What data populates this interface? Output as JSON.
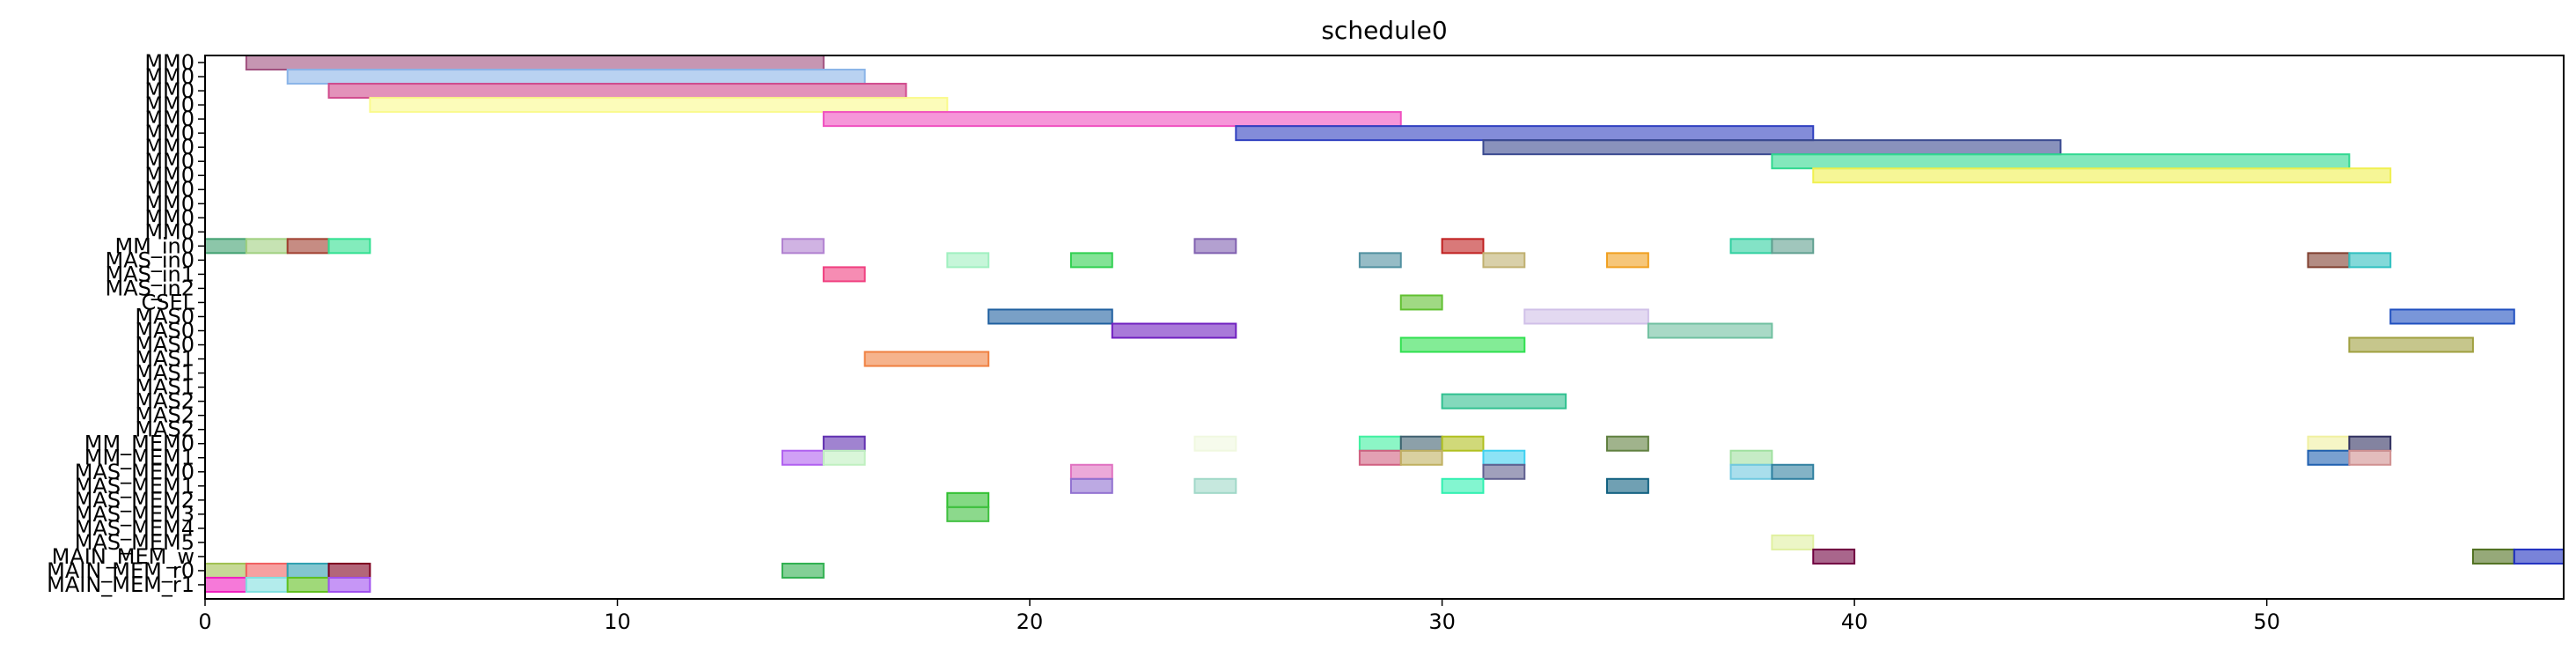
{
  "chart_data": {
    "type": "gantt",
    "title": "schedule0",
    "xlabel": "",
    "ylabel": "",
    "xlim": [
      0,
      57.2
    ],
    "x_ticks": [
      0,
      10,
      20,
      30,
      40,
      50
    ],
    "grid": false,
    "rows": [
      "MM0",
      "MM0",
      "MM0",
      "MM0",
      "MM0",
      "MM0",
      "MM0",
      "MM0",
      "MM0",
      "MM0",
      "MM0",
      "MM0",
      "MM0",
      "MM_in0",
      "MAS_in0",
      "MAS_in1",
      "MAS_in2",
      "CSEL",
      "MAS0",
      "MAS0",
      "MAS0",
      "MAS1",
      "MAS1",
      "MAS1",
      "MAS2",
      "MAS2",
      "MAS2",
      "MM_MEM0",
      "MM_MEM1",
      "MAS_MEM0",
      "MAS_MEM1",
      "MAS_MEM2",
      "MAS_MEM3",
      "MAS_MEM4",
      "MAS_MEM5",
      "MAIN_MEM_w",
      "MAIN_MEM_r0",
      "MAIN_MEM_r1"
    ],
    "tasks": [
      {
        "row": 0,
        "start": 1,
        "end": 15,
        "color": "#a0507e"
      },
      {
        "row": 1,
        "start": 2,
        "end": 16,
        "color": "#8ab4e8"
      },
      {
        "row": 2,
        "start": 3,
        "end": 17,
        "color": "#d04a8c"
      },
      {
        "row": 3,
        "start": 4,
        "end": 18,
        "color": "#fafa8c"
      },
      {
        "row": 4,
        "start": 15,
        "end": 29,
        "color": "#f050c0"
      },
      {
        "row": 5,
        "start": 25,
        "end": 39,
        "color": "#3040c0"
      },
      {
        "row": 6,
        "start": 31,
        "end": 45,
        "color": "#3a4a90"
      },
      {
        "row": 7,
        "start": 38,
        "end": 52,
        "color": "#30d890"
      },
      {
        "row": 8,
        "start": 39,
        "end": 53,
        "color": "#f0f050"
      },
      {
        "row": 13,
        "start": 0,
        "end": 1,
        "color": "#40a070"
      },
      {
        "row": 13,
        "start": 1,
        "end": 2,
        "color": "#a0d080"
      },
      {
        "row": 13,
        "start": 2,
        "end": 3,
        "color": "#a04030"
      },
      {
        "row": 13,
        "start": 3,
        "end": 4,
        "color": "#30e090"
      },
      {
        "row": 13,
        "start": 14,
        "end": 15,
        "color": "#b080d0"
      },
      {
        "row": 13,
        "start": 24,
        "end": 25,
        "color": "#8060b0"
      },
      {
        "row": 13,
        "start": 30,
        "end": 31,
        "color": "#c02020"
      },
      {
        "row": 13,
        "start": 37,
        "end": 38,
        "color": "#30d0a0"
      },
      {
        "row": 13,
        "start": 38,
        "end": 39,
        "color": "#60a090"
      },
      {
        "row": 14,
        "start": 18,
        "end": 19,
        "color": "#a0f0c0"
      },
      {
        "row": 14,
        "start": 21,
        "end": 22,
        "color": "#30d050"
      },
      {
        "row": 14,
        "start": 28,
        "end": 29,
        "color": "#5090a0"
      },
      {
        "row": 14,
        "start": 31,
        "end": 32,
        "color": "#c0b070"
      },
      {
        "row": 14,
        "start": 34,
        "end": 35,
        "color": "#f0a020"
      },
      {
        "row": 14,
        "start": 51,
        "end": 52,
        "color": "#804030"
      },
      {
        "row": 14,
        "start": 52,
        "end": 53,
        "color": "#30c0c0"
      },
      {
        "row": 15,
        "start": 15,
        "end": 16,
        "color": "#f04080"
      },
      {
        "row": 17,
        "start": 29,
        "end": 30,
        "color": "#60c030"
      },
      {
        "row": 18,
        "start": 19,
        "end": 22,
        "color": "#2060a0"
      },
      {
        "row": 18,
        "start": 32,
        "end": 35,
        "color": "#d0c0e8"
      },
      {
        "row": 18,
        "start": 53,
        "end": 56,
        "color": "#2050c0"
      },
      {
        "row": 19,
        "start": 22,
        "end": 25,
        "color": "#7020c0"
      },
      {
        "row": 19,
        "start": 35,
        "end": 38,
        "color": "#70c0a0"
      },
      {
        "row": 20,
        "start": 29,
        "end": 32,
        "color": "#30e050"
      },
      {
        "row": 20,
        "start": 52,
        "end": 55,
        "color": "#a0a040"
      },
      {
        "row": 21,
        "start": 16,
        "end": 19,
        "color": "#f08040"
      },
      {
        "row": 24,
        "start": 30,
        "end": 33,
        "color": "#30c090"
      },
      {
        "row": 27,
        "start": 15,
        "end": 16,
        "color": "#6030b0"
      },
      {
        "row": 27,
        "start": 24,
        "end": 25,
        "color": "#f0f8e0"
      },
      {
        "row": 27,
        "start": 28,
        "end": 29,
        "color": "#40f0a0"
      },
      {
        "row": 27,
        "start": 29,
        "end": 30,
        "color": "#406070"
      },
      {
        "row": 27,
        "start": 30,
        "end": 31,
        "color": "#b0c020"
      },
      {
        "row": 27,
        "start": 34,
        "end": 35,
        "color": "#608040"
      },
      {
        "row": 27,
        "start": 51,
        "end": 52,
        "color": "#f0f0a0"
      },
      {
        "row": 27,
        "start": 52,
        "end": 53,
        "color": "#303060"
      },
      {
        "row": 28,
        "start": 14,
        "end": 15,
        "color": "#b060f0"
      },
      {
        "row": 28,
        "start": 15,
        "end": 16,
        "color": "#c0f0c0"
      },
      {
        "row": 28,
        "start": 28,
        "end": 29,
        "color": "#d06080"
      },
      {
        "row": 28,
        "start": 29,
        "end": 30,
        "color": "#c0b060"
      },
      {
        "row": 28,
        "start": 31,
        "end": 32,
        "color": "#40d0f0"
      },
      {
        "row": 28,
        "start": 37,
        "end": 38,
        "color": "#a0e0a0"
      },
      {
        "row": 28,
        "start": 51,
        "end": 52,
        "color": "#2060b0"
      },
      {
        "row": 28,
        "start": 52,
        "end": 53,
        "color": "#d09090"
      },
      {
        "row": 29,
        "start": 21,
        "end": 22,
        "color": "#e070c0"
      },
      {
        "row": 29,
        "start": 31,
        "end": 32,
        "color": "#606090"
      },
      {
        "row": 29,
        "start": 37,
        "end": 38,
        "color": "#70c8e0"
      },
      {
        "row": 29,
        "start": 38,
        "end": 39,
        "color": "#3080a0"
      },
      {
        "row": 30,
        "start": 21,
        "end": 22,
        "color": "#9070d0"
      },
      {
        "row": 30,
        "start": 24,
        "end": 25,
        "color": "#a0d8c8"
      },
      {
        "row": 30,
        "start": 30,
        "end": 31,
        "color": "#30f0b0"
      },
      {
        "row": 30,
        "start": 34,
        "end": 35,
        "color": "#106080"
      },
      {
        "row": 31,
        "start": 18,
        "end": 19,
        "color": "#30c030"
      },
      {
        "row": 32,
        "start": 18,
        "end": 19,
        "color": "#40c040"
      },
      {
        "row": 34,
        "start": 38,
        "end": 39,
        "color": "#e0f0a0"
      },
      {
        "row": 35,
        "start": 39,
        "end": 40,
        "color": "#700040"
      },
      {
        "row": 35,
        "start": 55,
        "end": 56,
        "color": "#507020"
      },
      {
        "row": 35,
        "start": 56,
        "end": 57.2,
        "color": "#2030c0"
      },
      {
        "row": 36,
        "start": 0,
        "end": 1,
        "color": "#a0c050"
      },
      {
        "row": 36,
        "start": 1,
        "end": 2,
        "color": "#f06060"
      },
      {
        "row": 36,
        "start": 2,
        "end": 3,
        "color": "#30a0b0"
      },
      {
        "row": 36,
        "start": 3,
        "end": 4,
        "color": "#800020"
      },
      {
        "row": 36,
        "start": 14,
        "end": 15,
        "color": "#30b050"
      },
      {
        "row": 37,
        "start": 0,
        "end": 1,
        "color": "#f020c0"
      },
      {
        "row": 37,
        "start": 1,
        "end": 2,
        "color": "#80e0e0"
      },
      {
        "row": 37,
        "start": 2,
        "end": 3,
        "color": "#60c020"
      },
      {
        "row": 37,
        "start": 3,
        "end": 4,
        "color": "#a050f0"
      }
    ]
  }
}
